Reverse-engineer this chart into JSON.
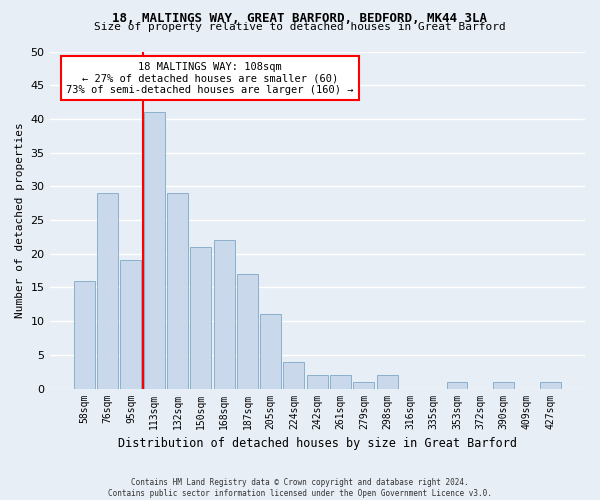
{
  "title1": "18, MALTINGS WAY, GREAT BARFORD, BEDFORD, MK44 3LA",
  "title2": "Size of property relative to detached houses in Great Barford",
  "xlabel": "Distribution of detached houses by size in Great Barford",
  "ylabel": "Number of detached properties",
  "footnote1": "Contains HM Land Registry data © Crown copyright and database right 2024.",
  "footnote2": "Contains public sector information licensed under the Open Government Licence v3.0.",
  "categories": [
    "58sqm",
    "76sqm",
    "95sqm",
    "113sqm",
    "132sqm",
    "150sqm",
    "168sqm",
    "187sqm",
    "205sqm",
    "224sqm",
    "242sqm",
    "261sqm",
    "279sqm",
    "298sqm",
    "316sqm",
    "335sqm",
    "353sqm",
    "372sqm",
    "390sqm",
    "409sqm",
    "427sqm"
  ],
  "values": [
    16,
    29,
    19,
    41,
    29,
    21,
    22,
    17,
    11,
    4,
    2,
    2,
    1,
    2,
    0,
    0,
    1,
    0,
    1,
    0,
    1
  ],
  "bar_color": "#c9d9eb",
  "bar_edge_color": "#8ab0cc",
  "vline_index": 3,
  "vline_color": "red",
  "annotation_title": "18 MALTINGS WAY: 108sqm",
  "annotation_line2": "← 27% of detached houses are smaller (60)",
  "annotation_line3": "73% of semi-detached houses are larger (160) →",
  "annotation_box_color": "white",
  "annotation_box_edge": "red",
  "ylim": [
    0,
    50
  ],
  "yticks": [
    0,
    5,
    10,
    15,
    20,
    25,
    30,
    35,
    40,
    45,
    50
  ],
  "background_color": "#e8eef5",
  "grid_color": "white"
}
